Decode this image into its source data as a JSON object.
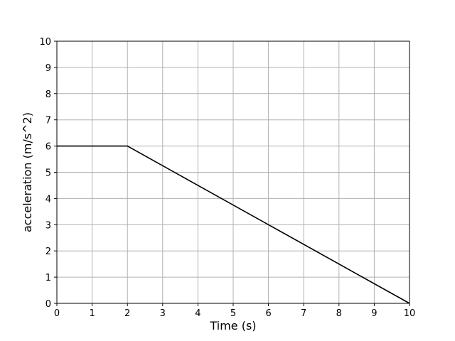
{
  "chart_data": {
    "type": "line",
    "title": "",
    "xlabel": "Time (s)",
    "ylabel": "acceleration (m/s^2)",
    "xlim": [
      0,
      10
    ],
    "ylim": [
      0,
      10
    ],
    "xticks": [
      "0",
      "1",
      "2",
      "3",
      "4",
      "5",
      "6",
      "7",
      "8",
      "9",
      "10"
    ],
    "yticks": [
      "0",
      "1",
      "2",
      "3",
      "4",
      "5",
      "6",
      "7",
      "8",
      "9",
      "10"
    ],
    "grid": true,
    "series": [
      {
        "x": [
          0,
          2,
          10
        ],
        "y": [
          6,
          6,
          0
        ],
        "color": "#000000"
      }
    ],
    "colors": {
      "grid": "#b0b0b0",
      "line": "#000000",
      "axes": "#000000"
    }
  }
}
